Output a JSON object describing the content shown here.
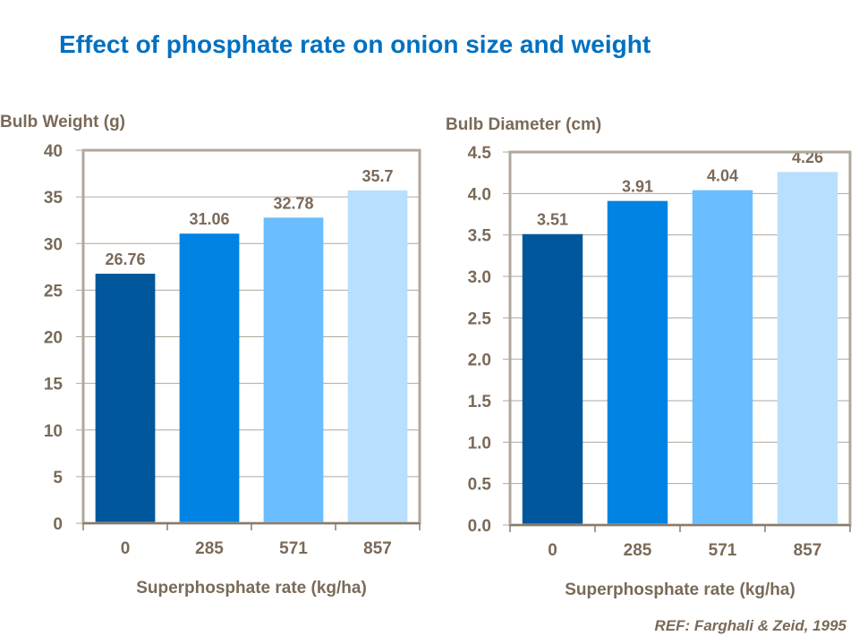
{
  "title": "Effect of phosphate rate on onion size and weight",
  "reference": "REF: Farghali & Zeid, 1995",
  "colors": {
    "bars": [
      "#00579B",
      "#0083E3",
      "#6ABEFF",
      "#B9DFFF"
    ],
    "text": "#7A6A58",
    "title": "#0070C0",
    "frame": "#B0A79C"
  },
  "chart_data": [
    {
      "type": "bar",
      "title": "",
      "ylabel": "Bulb Weight (g)",
      "xlabel": "Superphosphate  rate (kg/ha)",
      "categories": [
        "0",
        "285",
        "571",
        "857"
      ],
      "values": [
        26.76,
        31.06,
        32.78,
        35.7
      ],
      "data_labels": [
        "26.76",
        "31.06",
        "32.78",
        "35.7"
      ],
      "ylim": [
        0,
        40
      ],
      "yticks": [
        "0",
        "5",
        "10",
        "15",
        "20",
        "25",
        "30",
        "35",
        "40"
      ],
      "grid": true,
      "legend": "none"
    },
    {
      "type": "bar",
      "title": "",
      "ylabel": "Bulb Diameter (cm)",
      "xlabel": "Superphosphate  rate (kg/ha)",
      "categories": [
        "0",
        "285",
        "571",
        "857"
      ],
      "values": [
        3.51,
        3.91,
        4.04,
        4.26
      ],
      "data_labels": [
        "3.51",
        "3.91",
        "4.04",
        "4.26"
      ],
      "ylim": [
        0,
        4.5
      ],
      "yticks": [
        "0.0",
        "0.5",
        "1.0",
        "1.5",
        "2.0",
        "2.5",
        "3.0",
        "3.5",
        "4.0",
        "4.5"
      ],
      "grid": true,
      "legend": "none"
    }
  ]
}
